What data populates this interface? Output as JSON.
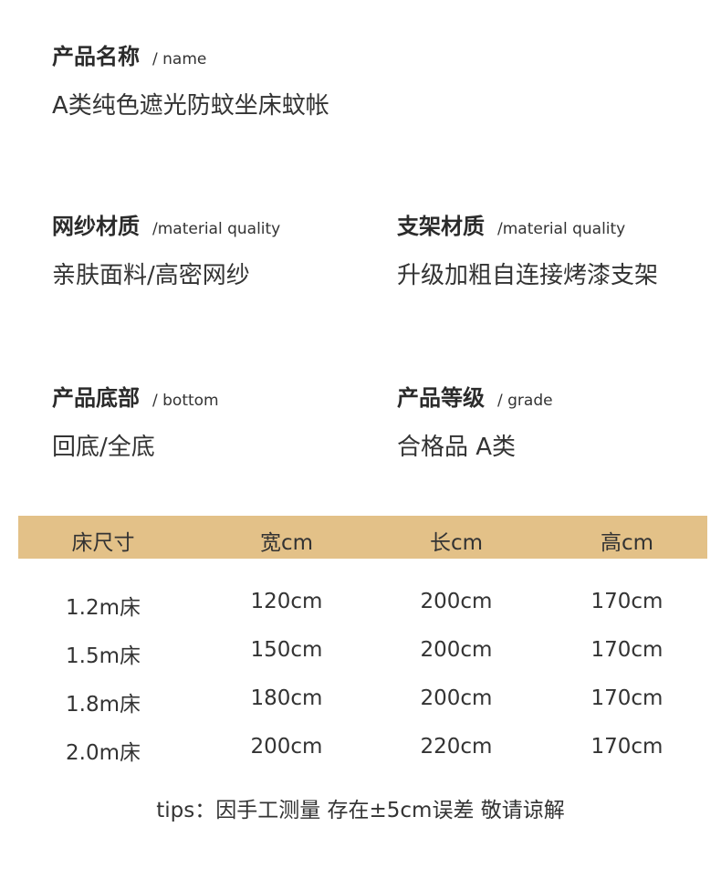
{
  "specs": [
    {
      "label": "产品名称",
      "sub": "/ name",
      "value": "A类纯色遮光防蚊坐床蚊帐"
    },
    {
      "label": "网纱材质",
      "sub": "/material quality",
      "value": "亲肤面料/高密网纱"
    },
    {
      "label": "支架材质",
      "sub": "/material quality",
      "value": "升级加粗自连接烤漆支架"
    },
    {
      "label": "产品底部",
      "sub": "/ bottom",
      "value": "回底/全底"
    },
    {
      "label": "产品等级",
      "sub": "/ grade",
      "value": "合格品 A类"
    }
  ],
  "table": {
    "header_color": "#e3c188",
    "headers": [
      "床尺寸",
      "宽cm",
      "长cm",
      "高cm"
    ],
    "rows": [
      [
        "1.2m床",
        "120cm",
        "200cm",
        "170cm"
      ],
      [
        "1.5m床",
        "150cm",
        "200cm",
        "170cm"
      ],
      [
        "1.8m床",
        "180cm",
        "200cm",
        "170cm"
      ],
      [
        "2.0m床",
        "200cm",
        "220cm",
        "170cm"
      ]
    ]
  },
  "tips": "tips：因手工测量 存在±5cm误差 敬请谅解"
}
